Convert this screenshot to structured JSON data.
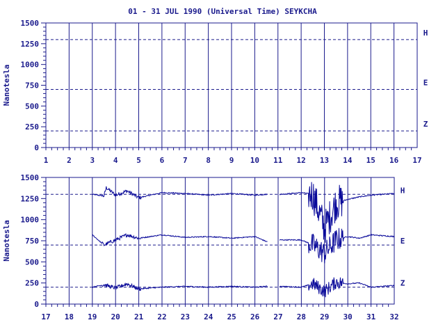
{
  "title": "01 - 31 JUL 1990 (Universal Time) SEYKCHA",
  "colors": {
    "ink": "#1a1a8c",
    "trace": "#0a0a9a"
  },
  "chart_data": [
    {
      "type": "line",
      "panel": "top",
      "ylabel": "Nanotesla",
      "ylim": [
        0,
        1500
      ],
      "yticks": [
        "0",
        "250",
        "500",
        "750",
        "1000",
        "1250",
        "1500"
      ],
      "xlim": [
        1,
        17
      ],
      "xticks": [
        "1",
        "2",
        "3",
        "4",
        "5",
        "6",
        "7",
        "8",
        "9",
        "10",
        "11",
        "12",
        "13",
        "14",
        "15",
        "16",
        "17"
      ],
      "baselines": {
        "H": 1300,
        "E": 700,
        "Z": 200
      },
      "series": [
        {
          "name": "H",
          "values": []
        },
        {
          "name": "E",
          "values": []
        },
        {
          "name": "Z",
          "values": []
        }
      ]
    },
    {
      "type": "line",
      "panel": "bottom",
      "ylabel": "Nanotesla",
      "ylim": [
        0,
        1500
      ],
      "yticks": [
        "0",
        "250",
        "500",
        "750",
        "1000",
        "1250",
        "1500"
      ],
      "xlim": [
        17,
        32
      ],
      "xticks": [
        "17",
        "18",
        "19",
        "20",
        "21",
        "22",
        "23",
        "24",
        "25",
        "26",
        "27",
        "28",
        "29",
        "30",
        "31",
        "32"
      ],
      "baselines": {
        "H": 1300,
        "E": 700,
        "Z": 200
      },
      "gaps": [
        [
          17,
          19.0
        ],
        [
          26.55,
          27.05
        ]
      ],
      "series": [
        {
          "name": "H",
          "values": [
            [
              19.0,
              1300
            ],
            [
              19.5,
              1280
            ],
            [
              19.6,
              1380
            ],
            [
              20.0,
              1290
            ],
            [
              20.5,
              1340
            ],
            [
              21.0,
              1260
            ],
            [
              22.0,
              1320
            ],
            [
              23.0,
              1310
            ],
            [
              24.0,
              1290
            ],
            [
              25.0,
              1310
            ],
            [
              26.0,
              1290
            ],
            [
              26.5,
              1300
            ],
            [
              27.1,
              1300
            ],
            [
              28.0,
              1320
            ],
            [
              28.5,
              1300
            ],
            [
              29.0,
              900
            ],
            [
              29.5,
              1200
            ],
            [
              30.0,
              1240
            ],
            [
              30.5,
              1270
            ],
            [
              31.0,
              1290
            ],
            [
              32.0,
              1310
            ]
          ]
        },
        {
          "name": "E",
          "values": [
            [
              19.0,
              820
            ],
            [
              19.5,
              700
            ],
            [
              20.0,
              760
            ],
            [
              20.5,
              820
            ],
            [
              21.0,
              780
            ],
            [
              22.0,
              820
            ],
            [
              23.0,
              790
            ],
            [
              24.0,
              800
            ],
            [
              25.0,
              780
            ],
            [
              26.0,
              800
            ],
            [
              26.5,
              740
            ],
            [
              27.1,
              760
            ],
            [
              28.0,
              760
            ],
            [
              28.5,
              700
            ],
            [
              29.0,
              600
            ],
            [
              29.5,
              760
            ],
            [
              30.0,
              800
            ],
            [
              30.5,
              780
            ],
            [
              31.0,
              820
            ],
            [
              32.0,
              800
            ]
          ]
        },
        {
          "name": "Z",
          "values": [
            [
              19.0,
              200
            ],
            [
              19.5,
              230
            ],
            [
              20.0,
              190
            ],
            [
              20.5,
              240
            ],
            [
              21.0,
              180
            ],
            [
              22.0,
              200
            ],
            [
              23.0,
              210
            ],
            [
              24.0,
              200
            ],
            [
              25.0,
              210
            ],
            [
              26.0,
              200
            ],
            [
              26.5,
              210
            ],
            [
              27.1,
              210
            ],
            [
              28.0,
              200
            ],
            [
              28.5,
              240
            ],
            [
              29.0,
              150
            ],
            [
              29.5,
              260
            ],
            [
              30.0,
              240
            ],
            [
              30.5,
              250
            ],
            [
              31.0,
              200
            ],
            [
              32.0,
              220
            ]
          ]
        }
      ]
    }
  ]
}
